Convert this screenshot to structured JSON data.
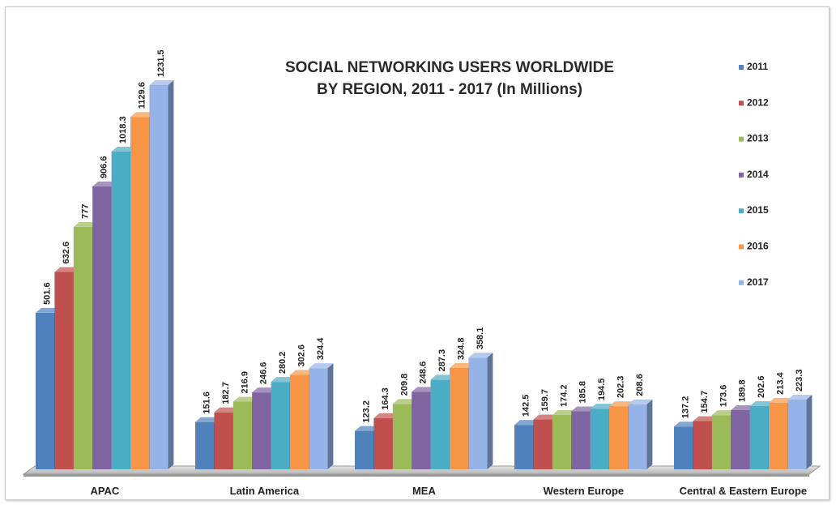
{
  "chart_data": {
    "type": "bar",
    "title": "SOCIAL NETWORKING USERS WORLDWIDE BY REGION, 2011 - 2017 (In Millions)",
    "title_lines": [
      "SOCIAL NETWORKING USERS WORLDWIDE",
      "BY REGION, 2011 - 2017 (In Millions)"
    ],
    "categories": [
      "APAC",
      "Latin America",
      "MEA",
      "Western Europe",
      "Central & Eastern Europe"
    ],
    "series": [
      {
        "name": "2011",
        "color": "#4f81bd",
        "values": [
          501.6,
          151.6,
          123.2,
          142.5,
          137.2
        ]
      },
      {
        "name": "2012",
        "color": "#c0504d",
        "values": [
          632.6,
          182.7,
          164.3,
          159.7,
          154.7
        ]
      },
      {
        "name": "2013",
        "color": "#9bbb59",
        "values": [
          777,
          216.9,
          209.8,
          174.2,
          173.6
        ]
      },
      {
        "name": "2014",
        "color": "#8064a2",
        "values": [
          906.6,
          246.6,
          248.6,
          185.8,
          189.8
        ]
      },
      {
        "name": "2015",
        "color": "#4bacc6",
        "values": [
          1018.3,
          280.2,
          287.3,
          194.5,
          202.6
        ]
      },
      {
        "name": "2016",
        "color": "#f79646",
        "values": [
          1129.6,
          302.6,
          324.8,
          202.3,
          213.4
        ]
      },
      {
        "name": "2017",
        "color": "#95b3e7",
        "values": [
          1231.5,
          324.4,
          358.1,
          208.6,
          223.3
        ]
      }
    ],
    "ylim": [
      0,
      1231.5
    ],
    "xlabel": "",
    "ylabel": "",
    "grid": false,
    "legend_position": "right",
    "style": "3d-bar"
  }
}
